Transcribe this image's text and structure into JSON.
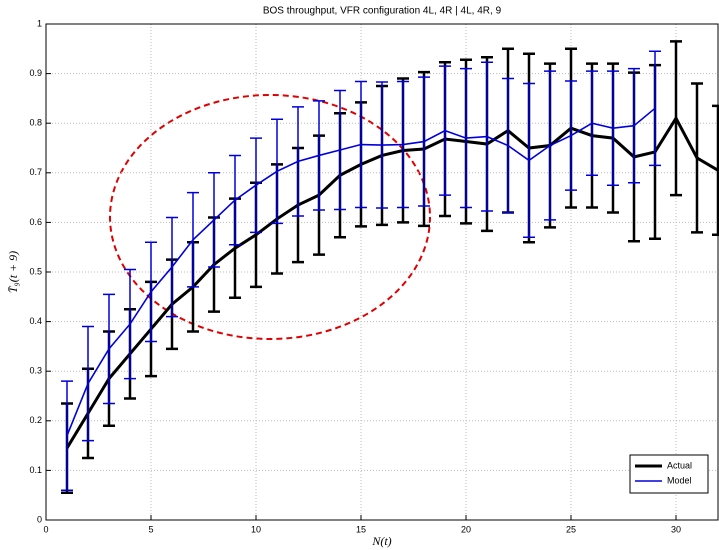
{
  "chart_data": {
    "type": "line",
    "title": "BOS throughput, VFR configuration 4L, 4R | 4L, 4R, 9",
    "x_label": "N(t)",
    "y_label": "T̄₉(t + 9)",
    "x": [
      1,
      2,
      3,
      4,
      5,
      6,
      7,
      8,
      9,
      10,
      11,
      12,
      13,
      14,
      15,
      16,
      17,
      18,
      19,
      20,
      21,
      22,
      23,
      24,
      25,
      26,
      27,
      28,
      29,
      30,
      31,
      32
    ],
    "series": [
      {
        "name": "Actual",
        "color": "#000000",
        "values": [
          0.145,
          0.215,
          0.285,
          0.335,
          0.385,
          0.435,
          0.47,
          0.515,
          0.548,
          0.575,
          0.607,
          0.635,
          0.655,
          0.695,
          0.717,
          0.735,
          0.745,
          0.748,
          0.768,
          0.763,
          0.758,
          0.785,
          0.75,
          0.755,
          0.79,
          0.775,
          0.77,
          0.732,
          0.742,
          0.81,
          0.73,
          0.705
        ],
        "errors": [
          0.09,
          0.09,
          0.095,
          0.09,
          0.095,
          0.09,
          0.09,
          0.095,
          0.1,
          0.105,
          0.11,
          0.115,
          0.12,
          0.125,
          0.125,
          0.14,
          0.145,
          0.155,
          0.155,
          0.165,
          0.175,
          0.165,
          0.19,
          0.165,
          0.16,
          0.145,
          0.15,
          0.17,
          0.175,
          0.155,
          0.15,
          0.13
        ]
      },
      {
        "name": "Model",
        "color": "#0000dd",
        "values": [
          0.17,
          0.275,
          0.345,
          0.395,
          0.46,
          0.51,
          0.565,
          0.605,
          0.645,
          0.675,
          0.703,
          0.723,
          0.735,
          0.746,
          0.757,
          0.756,
          0.757,
          0.763,
          0.785,
          0.77,
          0.773,
          0.755,
          0.725,
          0.755,
          0.775,
          0.8,
          0.79,
          0.795,
          0.83,
          null,
          null,
          null
        ],
        "errors": [
          0.11,
          0.115,
          0.11,
          0.11,
          0.1,
          0.1,
          0.095,
          0.095,
          0.09,
          0.095,
          0.105,
          0.11,
          0.11,
          0.12,
          0.127,
          0.127,
          0.127,
          0.13,
          0.13,
          0.14,
          0.15,
          0.135,
          0.155,
          0.15,
          0.11,
          0.105,
          0.115,
          0.115,
          0.115,
          null,
          null,
          null
        ]
      }
    ],
    "xlim": [
      0,
      32
    ],
    "ylim": [
      0,
      1
    ],
    "xticks": [
      0,
      5,
      10,
      15,
      20,
      25,
      30
    ],
    "yticks": [
      0,
      0.1,
      0.2,
      0.3,
      0.4,
      0.5,
      0.6,
      0.7,
      0.8,
      0.9,
      1
    ],
    "grid": true,
    "legend": "lower right"
  }
}
